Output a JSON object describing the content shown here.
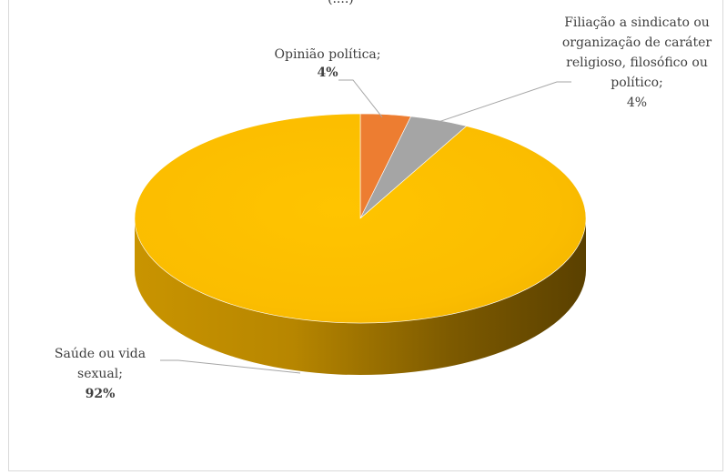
{
  "chart_data": {
    "type": "pie",
    "title": "",
    "slices": [
      {
        "name": "Saúde ou vida sexual;",
        "percent_label": "92%",
        "value": 92.2,
        "color": "#ffc000"
      },
      {
        "name": "Opinião política;",
        "percent_label": "4%",
        "value": 3.6,
        "color": "#ed7d31"
      },
      {
        "name": "Filiação a sindicato ou organização de caráter religioso, filosófico ou político;",
        "percent_label": "4%",
        "value": 4.2,
        "color": "#a5a5a5"
      }
    ],
    "three_d": true,
    "legend": "none"
  },
  "labels": {
    "top_clipped": "(....)",
    "opiniao_name": "Opinião política;",
    "opiniao_pct": "4%",
    "filiacao_line1": "Filiação a sindicato ou",
    "filiacao_line2": "organização de caráter",
    "filiacao_line3": "religioso, filosófico ou",
    "filiacao_line4": "político;",
    "filiacao_pct": "4%",
    "saude_line1": "Saúde ou vida",
    "saude_line2": "sexual;",
    "saude_pct": "92%"
  }
}
